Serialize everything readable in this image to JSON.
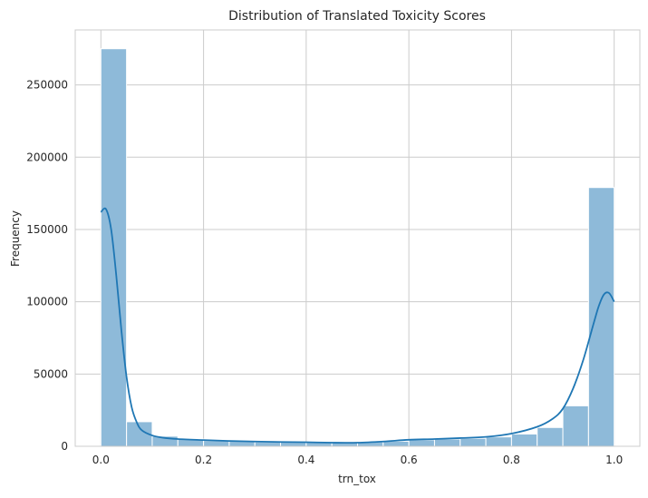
{
  "chart_data": {
    "type": "bar",
    "title": "Distribution of Translated Toxicity Scores",
    "xlabel": "trn_tox",
    "ylabel": "Frequency",
    "xlim": [
      -0.05,
      1.05
    ],
    "ylim": [
      0,
      288000
    ],
    "x_ticks": [
      0.0,
      0.2,
      0.4,
      0.6,
      0.8,
      1.0
    ],
    "x_tick_labels": [
      "0.0",
      "0.2",
      "0.4",
      "0.6",
      "0.8",
      "1.0"
    ],
    "y_ticks": [
      0,
      50000,
      100000,
      150000,
      200000,
      250000
    ],
    "y_tick_labels": [
      "0",
      "50000",
      "100000",
      "150000",
      "200000",
      "250000"
    ],
    "grid": true,
    "bins": [
      {
        "x0": 0.0,
        "x1": 0.05,
        "value": 275000
      },
      {
        "x0": 0.05,
        "x1": 0.1,
        "value": 17000
      },
      {
        "x0": 0.1,
        "x1": 0.15,
        "value": 7000
      },
      {
        "x0": 0.15,
        "x1": 0.2,
        "value": 5000
      },
      {
        "x0": 0.2,
        "x1": 0.25,
        "value": 4000
      },
      {
        "x0": 0.25,
        "x1": 0.3,
        "value": 3500
      },
      {
        "x0": 0.3,
        "x1": 0.35,
        "value": 3000
      },
      {
        "x0": 0.35,
        "x1": 0.4,
        "value": 3000
      },
      {
        "x0": 0.4,
        "x1": 0.45,
        "value": 3000
      },
      {
        "x0": 0.45,
        "x1": 0.5,
        "value": 2500
      },
      {
        "x0": 0.5,
        "x1": 0.55,
        "value": 3000
      },
      {
        "x0": 0.55,
        "x1": 0.6,
        "value": 3500
      },
      {
        "x0": 0.6,
        "x1": 0.65,
        "value": 4500
      },
      {
        "x0": 0.65,
        "x1": 0.7,
        "value": 5000
      },
      {
        "x0": 0.7,
        "x1": 0.75,
        "value": 5500
      },
      {
        "x0": 0.75,
        "x1": 0.8,
        "value": 6500
      },
      {
        "x0": 0.8,
        "x1": 0.85,
        "value": 8500
      },
      {
        "x0": 0.85,
        "x1": 0.9,
        "value": 13000
      },
      {
        "x0": 0.9,
        "x1": 0.95,
        "value": 28000
      },
      {
        "x0": 0.95,
        "x1": 1.0,
        "value": 179000
      }
    ],
    "kde": {
      "x": [
        0.0,
        0.01,
        0.02,
        0.03,
        0.04,
        0.05,
        0.06,
        0.07,
        0.08,
        0.1,
        0.12,
        0.15,
        0.2,
        0.25,
        0.3,
        0.35,
        0.4,
        0.45,
        0.5,
        0.55,
        0.6,
        0.65,
        0.7,
        0.75,
        0.8,
        0.85,
        0.88,
        0.9,
        0.92,
        0.94,
        0.96,
        0.97,
        0.98,
        0.99,
        1.0
      ],
      "y": [
        162000,
        164000,
        150000,
        118000,
        80000,
        48000,
        27000,
        16500,
        11000,
        7500,
        6000,
        5000,
        4300,
        3700,
        3300,
        3000,
        2800,
        2500,
        2500,
        3300,
        4500,
        5000,
        5700,
        6500,
        8800,
        13500,
        19000,
        26000,
        40000,
        60000,
        85000,
        97000,
        105000,
        106000,
        100000
      ]
    },
    "colors": {
      "bar_fill": "#8ebad9",
      "bar_edge": "#ffffff",
      "kde_line": "#1f77b4",
      "grid": "#cccccc",
      "spine": "#cccccc"
    }
  }
}
